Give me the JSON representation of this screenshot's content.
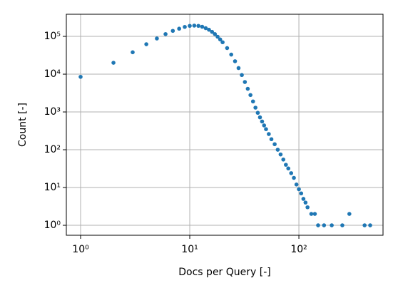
{
  "chart_data": {
    "type": "scatter",
    "xlabel": "Docs per Query [-]",
    "ylabel": "Count [-]",
    "xscale": "log",
    "yscale": "log",
    "grid": true,
    "color": "#1f77b4",
    "xlim": [
      0.74,
      590
    ],
    "ylim": [
      0.545,
      385000
    ],
    "xticks": [
      {
        "value": 1,
        "label": "10⁰"
      },
      {
        "value": 10,
        "label": "10¹"
      },
      {
        "value": 100,
        "label": "10²"
      }
    ],
    "yticks": [
      {
        "value": 1,
        "label": "10⁰"
      },
      {
        "value": 10,
        "label": "10¹"
      },
      {
        "value": 100,
        "label": "10²"
      },
      {
        "value": 1000,
        "label": "10³"
      },
      {
        "value": 10000,
        "label": "10⁴"
      },
      {
        "value": 100000,
        "label": "10⁵"
      }
    ],
    "x": [
      1,
      2,
      3,
      4,
      5,
      6,
      7,
      8,
      9,
      10,
      11,
      12,
      13,
      14,
      15,
      16,
      17,
      18,
      19,
      20,
      22,
      24,
      26,
      28,
      30,
      32,
      34,
      36,
      38,
      40,
      42,
      44,
      46,
      48,
      50,
      53,
      56,
      60,
      64,
      68,
      72,
      76,
      80,
      85,
      90,
      95,
      100,
      105,
      110,
      115,
      120,
      130,
      140,
      150,
      170,
      200,
      250,
      290,
      400,
      450
    ],
    "values": [
      8500,
      20000,
      38000,
      62000,
      88000,
      115000,
      140000,
      160000,
      178000,
      190000,
      193000,
      190000,
      180000,
      165000,
      150000,
      132000,
      115000,
      98000,
      83000,
      70000,
      49000,
      33000,
      22000,
      14500,
      9500,
      6200,
      4100,
      2800,
      1900,
      1300,
      950,
      720,
      560,
      440,
      350,
      260,
      190,
      140,
      100,
      75,
      55,
      40,
      32,
      24,
      18,
      12,
      9,
      7,
      5,
      4,
      3,
      2,
      2,
      1,
      1,
      1,
      1,
      2,
      1,
      1
    ]
  }
}
